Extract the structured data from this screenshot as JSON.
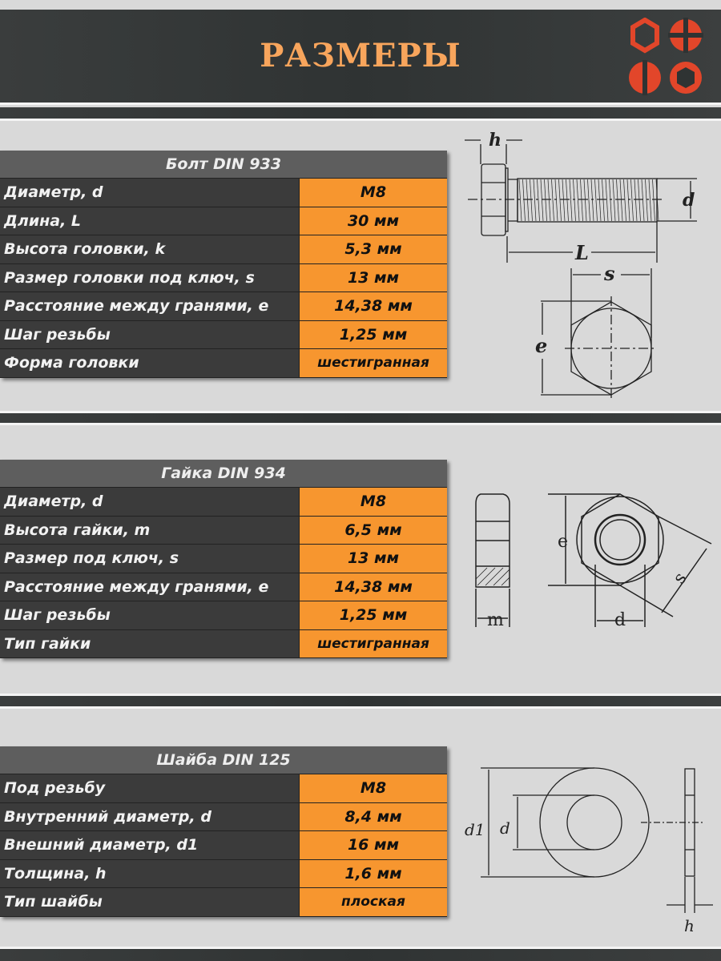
{
  "header": {
    "title": "РАЗМЕРЫ",
    "logo_color": "#e2462a"
  },
  "colors": {
    "orange": "#f7962f",
    "dark_cell": "#3b3b3b",
    "header_cell": "#5e5e5e",
    "title": "#f8a55c"
  },
  "bolt": {
    "title": "Болт DIN 933",
    "rows": [
      {
        "label": "Диаметр, d",
        "value": "M8"
      },
      {
        "label": "Длина, L",
        "value": "30 мм"
      },
      {
        "label": "Высота головки, k",
        "value": "5,3 мм"
      },
      {
        "label": "Размер головки под ключ, s",
        "value": "13 мм"
      },
      {
        "label": "Расстояние между гранями, e",
        "value": "14,38 мм"
      },
      {
        "label": "Шаг резьбы",
        "value": "1,25 мм"
      },
      {
        "label": "Форма головки",
        "value": "шестигранная"
      }
    ],
    "drawing_labels": {
      "h": "h",
      "d": "d",
      "L": "L",
      "s": "s",
      "e": "e"
    }
  },
  "nut": {
    "title": "Гайка DIN 934",
    "rows": [
      {
        "label": "Диаметр, d",
        "value": "M8"
      },
      {
        "label": "Высота гайки, m",
        "value": "6,5 мм"
      },
      {
        "label": "Размер под ключ, s",
        "value": "13 мм"
      },
      {
        "label": "Расстояние между гранями, e",
        "value": "14,38 мм"
      },
      {
        "label": "Шаг резьбы",
        "value": "1,25 мм"
      },
      {
        "label": "Тип гайки",
        "value": "шестигранная"
      }
    ],
    "drawing_labels": {
      "m": "m",
      "e": "e",
      "s": "s",
      "d": "d"
    }
  },
  "washer": {
    "title": "Шайба DIN 125",
    "rows": [
      {
        "label": "Под резьбу",
        "value": "M8"
      },
      {
        "label": "Внутренний диаметр, d",
        "value": "8,4 мм"
      },
      {
        "label": "Внешний диаметр, d1",
        "value": "16 мм"
      },
      {
        "label": "Толщина, h",
        "value": "1,6 мм"
      },
      {
        "label": "Тип шайбы",
        "value": "плоская"
      }
    ],
    "drawing_labels": {
      "d1": "d1",
      "d": "d",
      "h": "h"
    }
  }
}
